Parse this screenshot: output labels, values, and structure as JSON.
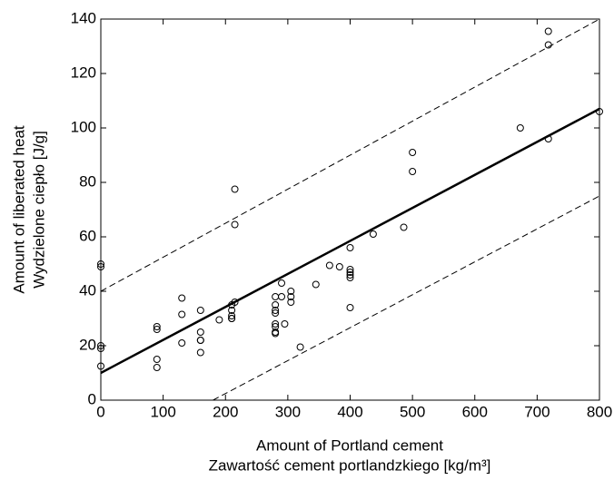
{
  "chart_data": {
    "type": "scatter",
    "x_label": [
      "Amount of Portland cement",
      "Zawartość cement portlandzkiego [kg/m³]"
    ],
    "y_label": [
      "Amount of liberated heat",
      "Wydzielone ciepło [J/g]"
    ],
    "xlim": [
      0,
      800
    ],
    "ylim": [
      0,
      140
    ],
    "xticks": [
      0,
      100,
      200,
      300,
      400,
      500,
      600,
      700,
      800
    ],
    "yticks": [
      0,
      20,
      40,
      60,
      80,
      100,
      120,
      140
    ],
    "grid": false,
    "series": [
      {
        "type": "scatter",
        "color": "#000000",
        "x": [
          0,
          0,
          0,
          0,
          0,
          90,
          90,
          90,
          90,
          130,
          130,
          130,
          160,
          160,
          160,
          160,
          160,
          190,
          210,
          210,
          210,
          210,
          210,
          215,
          215,
          215,
          280,
          280,
          280,
          280,
          280,
          280,
          280,
          280,
          290,
          290,
          295,
          305,
          305,
          305,
          320,
          345,
          367,
          383,
          400,
          400,
          400,
          400,
          400,
          400,
          437,
          486,
          500,
          500,
          673,
          718,
          718,
          718,
          800
        ],
        "y": [
          49,
          50,
          20,
          19,
          12.5,
          27,
          26,
          15,
          12,
          37.5,
          31.5,
          21,
          33,
          25,
          22,
          22,
          17.5,
          29.5,
          35,
          33,
          31,
          30,
          30,
          77.5,
          64.5,
          36,
          38,
          35,
          33,
          32,
          28,
          27,
          25,
          24.5,
          43,
          38,
          28,
          40,
          38,
          36,
          19.5,
          42.5,
          49.5,
          49,
          56,
          48,
          47,
          46,
          45,
          34,
          61,
          63.5,
          91,
          84,
          100,
          135.5,
          130.5,
          96,
          106
        ]
      },
      {
        "type": "line",
        "style": "solid",
        "color": "#000000",
        "x": [
          0,
          800
        ],
        "y": [
          10,
          107
        ]
      },
      {
        "type": "line",
        "style": "dashed",
        "color": "#000000",
        "x": [
          0,
          800
        ],
        "y": [
          40,
          140
        ]
      },
      {
        "type": "line",
        "style": "dashed",
        "color": "#000000",
        "x": [
          180,
          800
        ],
        "y": [
          0,
          75
        ]
      }
    ]
  }
}
